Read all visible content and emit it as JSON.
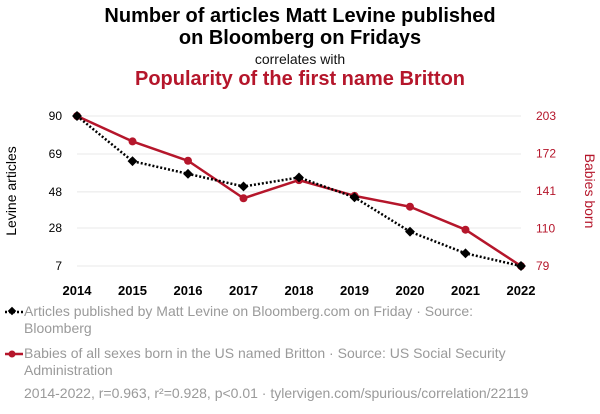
{
  "header": {
    "title_line1": "Number of articles Matt Levine published",
    "title_line2": "on Bloomberg on Fridays",
    "correlates": "correlates with",
    "title2": "Popularity of the first name Britton"
  },
  "legend": {
    "series1": "Articles published by Matt Levine on Bloomberg.com on Friday · Source: Bloomberg",
    "series2": "Babies of all sexes born in the US named Britton · Source: US Social Security Administration"
  },
  "footer": "2014-2022, r=0.963, r²=0.928, p<0.01 · tylervigen.com/spurious/correlation/22119",
  "colors": {
    "series1": "#000000",
    "series2": "#b5162b",
    "footer": "#9a9a9a"
  },
  "chart_data": {
    "type": "line",
    "x": [
      2014,
      2015,
      2016,
      2017,
      2018,
      2019,
      2020,
      2021,
      2022
    ],
    "y_left": {
      "label": "Levine articles",
      "ticks": [
        7,
        28,
        48,
        69,
        90
      ],
      "range": [
        7,
        90
      ]
    },
    "y_right": {
      "label": "Babies born",
      "ticks": [
        79,
        110,
        141,
        172,
        203
      ],
      "range": [
        79,
        203
      ]
    },
    "series": [
      {
        "name": "Articles published by Matt Levine on Bloomberg.com on Friday",
        "axis": "left",
        "values": [
          90,
          65,
          58,
          51,
          56,
          45,
          26,
          14,
          7
        ]
      },
      {
        "name": "Babies of all sexes born in the US named Britton",
        "axis": "right",
        "values": [
          203,
          182,
          166,
          135,
          150,
          137,
          128,
          109,
          79
        ]
      }
    ],
    "grid": true
  }
}
